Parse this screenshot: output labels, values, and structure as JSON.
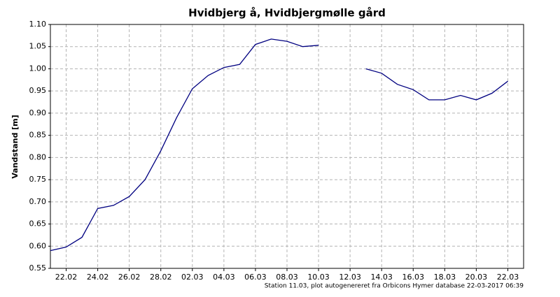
{
  "chart_data": {
    "type": "line",
    "title": "Hvidbjerg å, Hvidbjergmølle gård",
    "y_label": "Vandstand [m]",
    "footnote": "Station 11.03, plot autogenereret fra Orbicons Hymer database 22-03-2017 06:39",
    "x": [
      "21.02",
      "22.02",
      "23.02",
      "24.02",
      "25.02",
      "26.02",
      "27.02",
      "28.02",
      "01.03",
      "02.03",
      "03.03",
      "04.03",
      "05.03",
      "06.03",
      "07.03",
      "08.03",
      "09.03",
      "10.03",
      "11.03",
      "12.03",
      "13.03",
      "14.03",
      "15.03",
      "16.03",
      "17.03",
      "18.03",
      "19.03",
      "20.03",
      "21.03",
      "22.03"
    ],
    "series": [
      {
        "name": "Vandstand",
        "color": "#000080",
        "values": [
          0.59,
          0.598,
          0.62,
          0.685,
          0.692,
          0.712,
          0.75,
          0.815,
          0.89,
          0.955,
          0.985,
          1.003,
          1.01,
          1.055,
          1.067,
          1.062,
          1.05,
          1.053,
          null,
          null,
          1.0,
          0.99,
          0.965,
          0.953,
          0.93,
          0.93,
          0.94,
          0.93,
          0.945,
          0.972
        ]
      }
    ],
    "xlim": [
      "21.02",
      "23.03"
    ],
    "xticks": [
      "22.02",
      "24.02",
      "26.02",
      "28.02",
      "02.03",
      "04.03",
      "06.03",
      "08.03",
      "10.03",
      "12.03",
      "14.03",
      "16.03",
      "18.03",
      "20.03",
      "22.03"
    ],
    "ylim": [
      0.55,
      1.1
    ],
    "yticks": [
      0.55,
      {
        "value": 0.6,
        "label": "0.60"
      },
      0.65,
      {
        "value": 0.7,
        "label": "0.70"
      },
      0.75,
      {
        "value": 0.8,
        "label": "0.80"
      },
      0.85,
      {
        "value": 0.9,
        "label": "0.90"
      },
      0.95,
      {
        "value": 1.0,
        "label": "1.00"
      },
      1.05,
      {
        "value": 1.1,
        "label": "1.10"
      }
    ],
    "grid": true
  }
}
